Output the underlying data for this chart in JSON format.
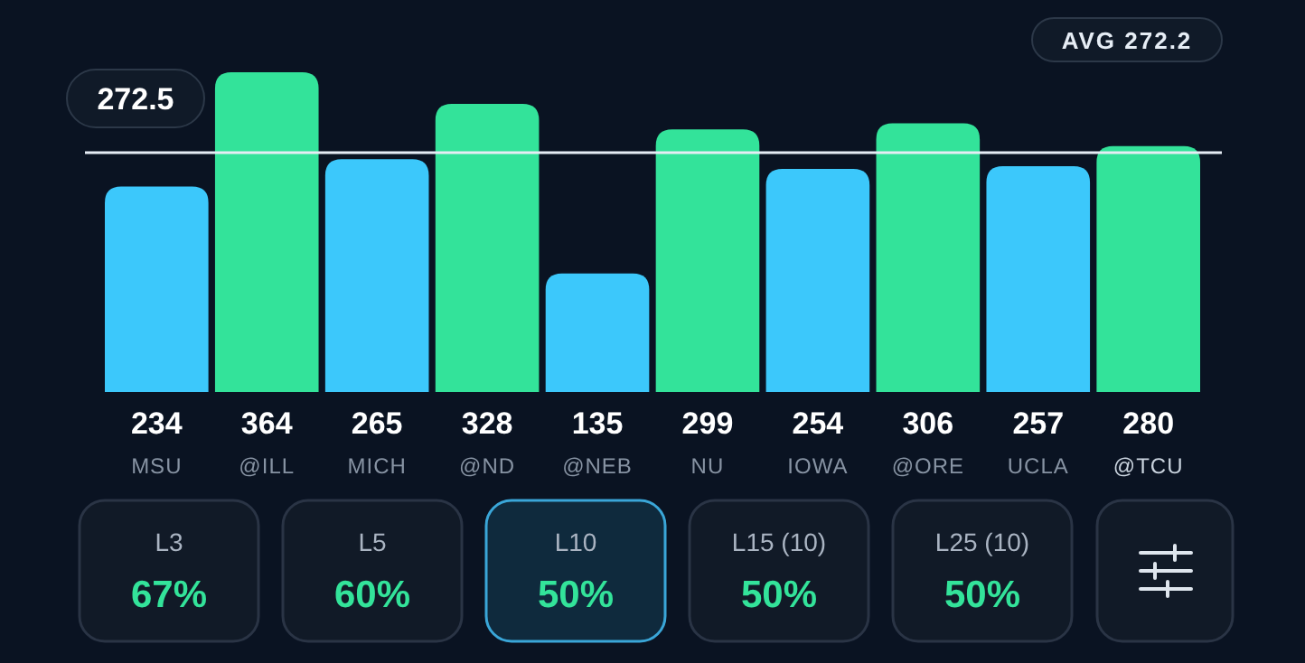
{
  "chart_data": {
    "type": "bar",
    "categories": [
      "MSU",
      "@ILL",
      "MICH",
      "@ND",
      "@NEB",
      "NU",
      "IOWA",
      "@ORE",
      "UCLA",
      "@TCU"
    ],
    "values": [
      234,
      364,
      265,
      328,
      135,
      299,
      254,
      306,
      257,
      280
    ],
    "colors": [
      "#3cc8fb",
      "#33e39a",
      "#3cc8fb",
      "#33e39a",
      "#3cc8fb",
      "#33e39a",
      "#3cc8fb",
      "#33e39a",
      "#3cc8fb",
      "#33e39a"
    ],
    "data_labels": true,
    "ref_lines": [
      {
        "axis": "y",
        "value": 272.5,
        "label": "272.5",
        "color": "#e6edf5"
      }
    ],
    "annotations": [
      "AVG 272.2",
      "L3",
      "67%",
      "L5",
      "60%",
      "L10",
      "50%",
      "L15 (10)",
      "50%",
      "L25 (10)",
      "50%"
    ]
  }
}
